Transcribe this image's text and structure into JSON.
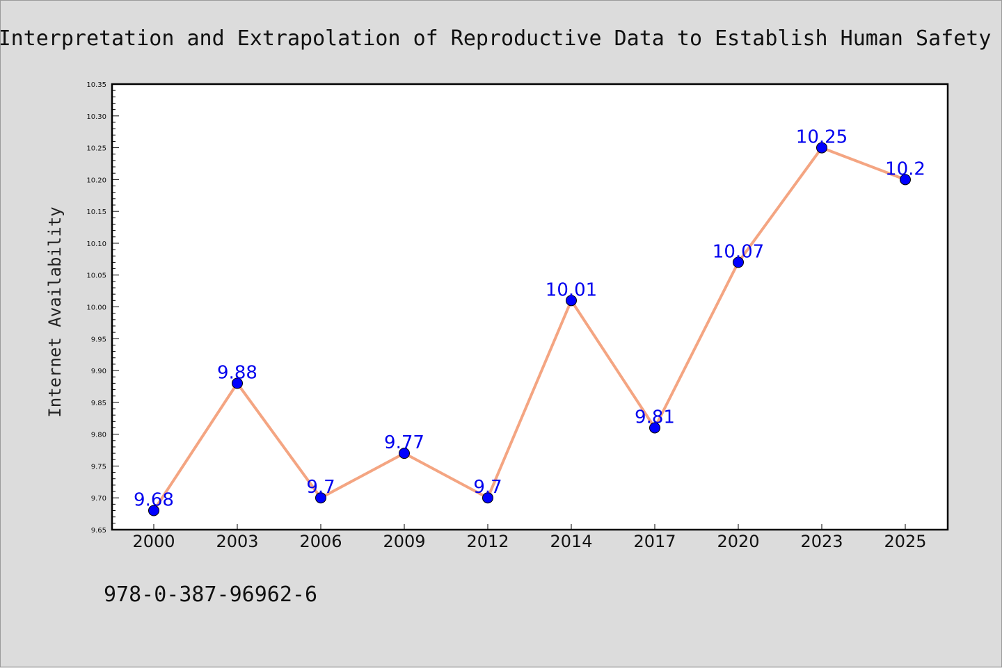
{
  "chart_data": {
    "type": "line",
    "title": "Interpretation and Extrapolation of Reproductive Data to Establish Human Safety",
    "xlabel": "",
    "ylabel": "Internet Availability",
    "categories": [
      "2000",
      "2003",
      "2006",
      "2009",
      "2012",
      "2014",
      "2017",
      "2020",
      "2023",
      "2025"
    ],
    "series": [
      {
        "values": [
          9.68,
          9.88,
          9.7,
          9.77,
          9.7,
          10.01,
          9.81,
          10.07,
          10.25,
          10.2
        ],
        "line_color": "#f4a582",
        "marker_color": "#0000ff"
      }
    ],
    "data_labels": [
      "9.68",
      "9.88",
      "9.7",
      "9.77",
      "9.7",
      "10.01",
      "9.81",
      "10.07",
      "10.25",
      "10.2"
    ],
    "ylim": [
      9.65,
      10.35
    ],
    "yticks": [
      "9.65",
      "9.70",
      "9.75",
      "9.80",
      "9.85",
      "9.90",
      "9.95",
      "10.00",
      "10.05",
      "10.10",
      "10.15",
      "10.20",
      "10.25",
      "10.30",
      "10.35"
    ],
    "grid": false,
    "legend": "none"
  },
  "footnote": "978-0-387-96962-6",
  "colors": {
    "background": "#dcdcdc",
    "plot_background": "#ffffff",
    "label_color": "#0000ee"
  }
}
